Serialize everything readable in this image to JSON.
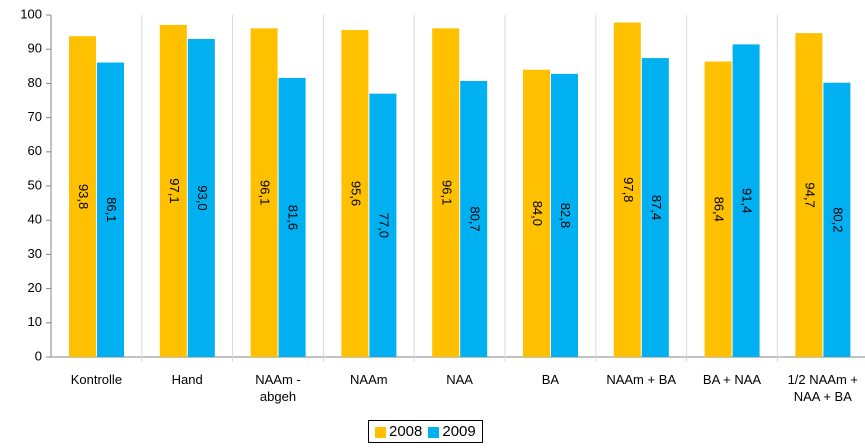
{
  "chart_data": {
    "type": "bar",
    "categories": [
      "Kontrolle",
      "Hand",
      "NAAm -\nabgeh",
      "NAAm",
      "NAA",
      "BA",
      "NAAm + BA",
      "BA + NAA",
      "1/2 NAAm +\nNAA + BA"
    ],
    "series": [
      {
        "name": "2008",
        "color": "#ffc000",
        "values": [
          93.8,
          97.1,
          96.1,
          95.6,
          96.1,
          84.0,
          97.8,
          86.4,
          94.7
        ],
        "value_labels": [
          "93,8",
          "97,1",
          "96,1",
          "95,6",
          "96,1",
          "84,0",
          "97,8",
          "86,4",
          "94,7"
        ]
      },
      {
        "name": "2009",
        "color": "#00b0f0",
        "values": [
          86.1,
          93.0,
          81.6,
          77.0,
          80.7,
          82.8,
          87.4,
          91.4,
          80.2
        ],
        "value_labels": [
          "86,1",
          "93,0",
          "81,6",
          "77,0",
          "80,7",
          "82,8",
          "87,4",
          "91,4",
          "80,2"
        ]
      }
    ],
    "ylim": [
      0,
      100
    ],
    "yticks": [
      0,
      10,
      20,
      30,
      40,
      50,
      60,
      70,
      80,
      90,
      100
    ]
  }
}
